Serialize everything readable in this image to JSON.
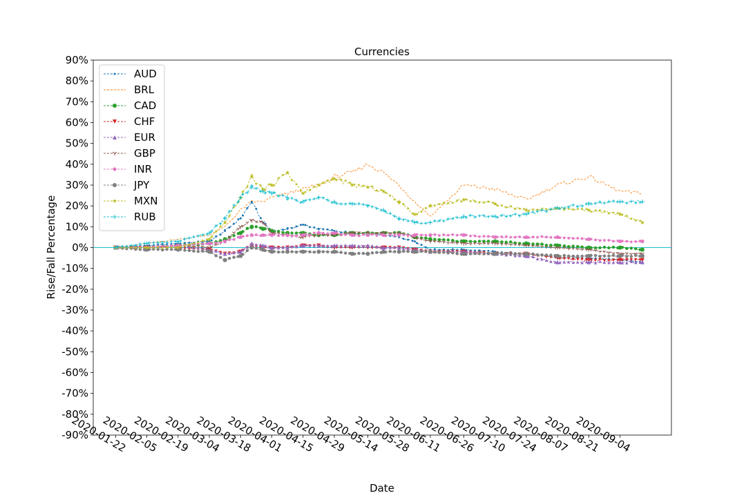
{
  "chart_data": {
    "type": "line",
    "title": "Currencies",
    "xlabel": "Date",
    "ylabel": "Rise/Fall Percentage",
    "ylim": [
      -90,
      90
    ],
    "yticks": [
      -90,
      -80,
      -70,
      -60,
      -50,
      -40,
      -30,
      -20,
      -10,
      0,
      10,
      20,
      30,
      40,
      50,
      60,
      70,
      80,
      90
    ],
    "ytick_labels": [
      "-90%",
      "-80%",
      "-70%",
      "-60%",
      "-50%",
      "-40%",
      "-30%",
      "-20%",
      "-10%",
      "0%",
      "10%",
      "20%",
      "30%",
      "40%",
      "50%",
      "60%",
      "70%",
      "80%",
      "90%"
    ],
    "xlim": [
      "2020-01-12",
      "2020-09-27"
    ],
    "xticks": [
      "2020-01-22",
      "2020-02-05",
      "2020-02-19",
      "2020-03-04",
      "2020-03-18",
      "2020-04-01",
      "2020-04-15",
      "2020-04-29",
      "2020-05-14",
      "2020-05-28",
      "2020-06-11",
      "2020-06-26",
      "2020-07-10",
      "2020-07-24",
      "2020-08-07",
      "2020-08-21",
      "2020-09-04"
    ],
    "grid": false,
    "legend_position": "top-left",
    "zero_line_color": "#17becf",
    "series": [
      {
        "name": "AUD",
        "color": "#1f77b4",
        "marker": "point",
        "x": [
          "2020-01-22",
          "2020-02-05",
          "2020-02-19",
          "2020-03-04",
          "2020-03-11",
          "2020-03-18",
          "2020-03-23",
          "2020-03-28",
          "2020-04-01",
          "2020-04-08",
          "2020-04-15",
          "2020-04-22",
          "2020-04-29",
          "2020-05-07",
          "2020-05-14",
          "2020-05-21",
          "2020-05-28",
          "2020-06-04",
          "2020-06-11",
          "2020-06-26",
          "2020-07-10",
          "2020-07-24",
          "2020-08-07",
          "2020-08-21",
          "2020-09-04",
          "2020-09-14"
        ],
        "y": [
          0,
          1,
          2,
          3,
          8,
          14,
          22,
          12,
          8,
          9,
          11,
          9,
          8,
          7,
          6,
          6,
          5,
          3,
          -1,
          -1,
          -2,
          -3,
          -5,
          -5,
          -6,
          -7
        ]
      },
      {
        "name": "BRL",
        "color": "#ff7f0e",
        "marker": "none",
        "x": [
          "2020-01-22",
          "2020-02-05",
          "2020-02-19",
          "2020-03-04",
          "2020-03-11",
          "2020-03-18",
          "2020-03-23",
          "2020-03-28",
          "2020-04-01",
          "2020-04-08",
          "2020-04-15",
          "2020-04-22",
          "2020-04-29",
          "2020-05-07",
          "2020-05-14",
          "2020-05-21",
          "2020-05-28",
          "2020-06-04",
          "2020-06-11",
          "2020-06-26",
          "2020-07-10",
          "2020-07-24",
          "2020-08-07",
          "2020-08-21",
          "2020-09-04",
          "2020-09-14"
        ],
        "y": [
          0,
          2,
          4,
          6,
          10,
          18,
          22,
          22,
          24,
          26,
          28,
          30,
          34,
          36,
          40,
          36,
          30,
          22,
          15,
          30,
          28,
          23,
          30,
          34,
          27,
          26
        ]
      },
      {
        "name": "CAD",
        "color": "#2ca02c",
        "marker": "circle",
        "x": [
          "2020-01-22",
          "2020-02-05",
          "2020-02-19",
          "2020-03-04",
          "2020-03-11",
          "2020-03-18",
          "2020-03-23",
          "2020-03-28",
          "2020-04-01",
          "2020-04-08",
          "2020-04-15",
          "2020-04-22",
          "2020-04-29",
          "2020-05-07",
          "2020-05-14",
          "2020-05-21",
          "2020-05-28",
          "2020-06-04",
          "2020-06-11",
          "2020-06-26",
          "2020-07-10",
          "2020-07-24",
          "2020-08-07",
          "2020-08-21",
          "2020-09-04",
          "2020-09-14"
        ],
        "y": [
          0,
          0,
          1,
          2,
          4,
          7,
          10,
          9,
          8,
          7,
          7,
          6,
          6,
          7,
          7,
          7,
          7,
          5,
          4,
          3,
          3,
          2,
          1,
          0,
          0,
          -1
        ]
      },
      {
        "name": "CHF",
        "color": "#d62728",
        "marker": "triangle-down",
        "x": [
          "2020-01-22",
          "2020-02-05",
          "2020-02-19",
          "2020-03-04",
          "2020-03-11",
          "2020-03-18",
          "2020-03-23",
          "2020-03-28",
          "2020-04-01",
          "2020-04-08",
          "2020-04-15",
          "2020-04-22",
          "2020-04-29",
          "2020-05-07",
          "2020-05-14",
          "2020-05-21",
          "2020-05-28",
          "2020-06-04",
          "2020-06-11",
          "2020-06-26",
          "2020-07-10",
          "2020-07-24",
          "2020-08-07",
          "2020-08-21",
          "2020-09-04",
          "2020-09-14"
        ],
        "y": [
          0,
          0,
          0,
          -1,
          -3,
          -2,
          1,
          0,
          0,
          0,
          1,
          1,
          0,
          0,
          0,
          0,
          0,
          -1,
          -2,
          -2,
          -3,
          -3,
          -5,
          -6,
          -6,
          -6
        ]
      },
      {
        "name": "EUR",
        "color": "#9467bd",
        "marker": "triangle-up",
        "x": [
          "2020-01-22",
          "2020-02-05",
          "2020-02-19",
          "2020-03-04",
          "2020-03-11",
          "2020-03-18",
          "2020-03-23",
          "2020-03-28",
          "2020-04-01",
          "2020-04-08",
          "2020-04-15",
          "2020-04-22",
          "2020-04-29",
          "2020-05-07",
          "2020-05-14",
          "2020-05-21",
          "2020-05-28",
          "2020-06-04",
          "2020-06-11",
          "2020-06-26",
          "2020-07-10",
          "2020-07-24",
          "2020-08-07",
          "2020-08-21",
          "2020-09-04",
          "2020-09-14"
        ],
        "y": [
          0,
          0,
          1,
          -1,
          -3,
          -2,
          2,
          1,
          0,
          0,
          1,
          1,
          1,
          1,
          1,
          0,
          0,
          -1,
          -2,
          -2,
          -3,
          -4,
          -7,
          -7,
          -7,
          -7
        ]
      },
      {
        "name": "GBP",
        "color": "#8c564b",
        "marker": "tri-down",
        "x": [
          "2020-01-22",
          "2020-02-05",
          "2020-02-19",
          "2020-03-04",
          "2020-03-11",
          "2020-03-18",
          "2020-03-23",
          "2020-03-28",
          "2020-04-01",
          "2020-04-08",
          "2020-04-15",
          "2020-04-22",
          "2020-04-29",
          "2020-05-07",
          "2020-05-14",
          "2020-05-21",
          "2020-05-28",
          "2020-06-04",
          "2020-06-11",
          "2020-06-26",
          "2020-07-10",
          "2020-07-24",
          "2020-08-07",
          "2020-08-21",
          "2020-09-04",
          "2020-09-14"
        ],
        "y": [
          0,
          0,
          1,
          0,
          3,
          10,
          13,
          12,
          7,
          6,
          5,
          6,
          6,
          7,
          7,
          7,
          7,
          5,
          3,
          2,
          2,
          1,
          0,
          -1,
          -3,
          -3
        ]
      },
      {
        "name": "INR",
        "color": "#e377c2",
        "marker": "pentagon",
        "x": [
          "2020-01-22",
          "2020-02-05",
          "2020-02-19",
          "2020-03-04",
          "2020-03-11",
          "2020-03-18",
          "2020-03-23",
          "2020-03-28",
          "2020-04-01",
          "2020-04-08",
          "2020-04-15",
          "2020-04-22",
          "2020-04-29",
          "2020-05-07",
          "2020-05-14",
          "2020-05-21",
          "2020-05-28",
          "2020-06-04",
          "2020-06-11",
          "2020-06-26",
          "2020-07-10",
          "2020-07-24",
          "2020-08-07",
          "2020-08-21",
          "2020-09-04",
          "2020-09-14"
        ],
        "y": [
          0,
          0,
          1,
          2,
          3,
          5,
          6,
          6,
          6,
          6,
          6,
          7,
          7,
          6,
          6,
          6,
          6,
          6,
          6,
          6,
          5,
          5,
          5,
          4,
          3,
          3
        ]
      },
      {
        "name": "JPY",
        "color": "#7f7f7f",
        "marker": "octagon",
        "x": [
          "2020-01-22",
          "2020-02-05",
          "2020-02-19",
          "2020-03-04",
          "2020-03-11",
          "2020-03-18",
          "2020-03-23",
          "2020-03-28",
          "2020-04-01",
          "2020-04-08",
          "2020-04-15",
          "2020-04-22",
          "2020-04-29",
          "2020-05-07",
          "2020-05-14",
          "2020-05-21",
          "2020-05-28",
          "2020-06-04",
          "2020-06-11",
          "2020-06-26",
          "2020-07-10",
          "2020-07-24",
          "2020-08-07",
          "2020-08-21",
          "2020-09-04",
          "2020-09-14"
        ],
        "y": [
          0,
          -1,
          -1,
          -2,
          -6,
          -4,
          0,
          -1,
          -2,
          -2,
          -2,
          -2,
          -2,
          -3,
          -3,
          -2,
          -2,
          -2,
          -2,
          -3,
          -3,
          -3,
          -4,
          -4,
          -4,
          -4
        ]
      },
      {
        "name": "MXN",
        "color": "#bcbd22",
        "marker": "star",
        "x": [
          "2020-01-22",
          "2020-02-05",
          "2020-02-19",
          "2020-03-04",
          "2020-03-11",
          "2020-03-18",
          "2020-03-23",
          "2020-03-28",
          "2020-04-01",
          "2020-04-08",
          "2020-04-15",
          "2020-04-22",
          "2020-04-29",
          "2020-05-07",
          "2020-05-14",
          "2020-05-21",
          "2020-05-28",
          "2020-06-04",
          "2020-06-11",
          "2020-06-26",
          "2020-07-10",
          "2020-07-24",
          "2020-08-07",
          "2020-08-21",
          "2020-09-04",
          "2020-09-14"
        ],
        "y": [
          0,
          0,
          0,
          4,
          12,
          24,
          34,
          28,
          30,
          36,
          26,
          30,
          33,
          30,
          29,
          27,
          22,
          16,
          20,
          23,
          21,
          18,
          19,
          18,
          16,
          12
        ]
      },
      {
        "name": "RUB",
        "color": "#17becf",
        "marker": "plus",
        "x": [
          "2020-01-22",
          "2020-02-05",
          "2020-02-19",
          "2020-03-04",
          "2020-03-11",
          "2020-03-18",
          "2020-03-23",
          "2020-03-28",
          "2020-04-01",
          "2020-04-08",
          "2020-04-15",
          "2020-04-22",
          "2020-04-29",
          "2020-05-07",
          "2020-05-14",
          "2020-05-21",
          "2020-05-28",
          "2020-06-04",
          "2020-06-11",
          "2020-06-26",
          "2020-07-10",
          "2020-07-24",
          "2020-08-07",
          "2020-08-21",
          "2020-09-04",
          "2020-09-14"
        ],
        "y": [
          0,
          2,
          3,
          7,
          14,
          24,
          29,
          27,
          26,
          24,
          22,
          24,
          22,
          21,
          20,
          18,
          14,
          12,
          12,
          15,
          15,
          16,
          19,
          21,
          22,
          22
        ]
      }
    ]
  }
}
